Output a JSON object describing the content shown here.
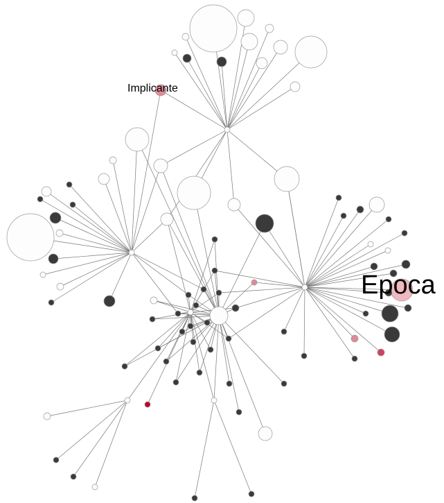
{
  "nodes": [
    {
      "label": "Implicante"
    },
    {
      "label": "Epoca"
    }
  ]
}
